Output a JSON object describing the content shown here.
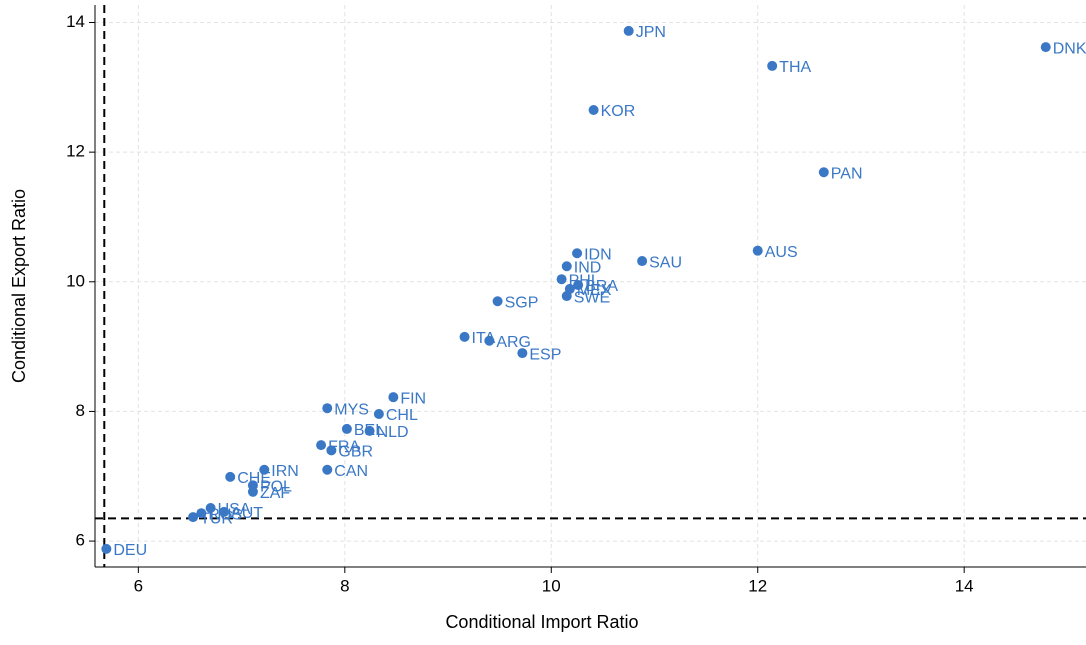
{
  "chart_data": {
    "type": "scatter",
    "xlabel": "Conditional Import Ratio",
    "ylabel": "Conditional Export Ratio",
    "labels": [
      "JPN",
      "DNK",
      "THA",
      "KOR",
      "PAN",
      "AUS",
      "IDN",
      "SAU",
      "IND",
      "PHL",
      "BRA",
      "MEX",
      "SWE",
      "SGP",
      "ITA",
      "ARG",
      "ESP",
      "FIN",
      "MYS",
      "CHL",
      "BEL",
      "NLD",
      "FRA",
      "GBR",
      "CAN",
      "IRN",
      "CHE",
      "POL",
      "ZAF",
      "USA",
      "AUT",
      "RUS",
      "TUR",
      "DEU"
    ],
    "x": [
      10.75,
      14.79,
      12.14,
      10.41,
      12.64,
      12.0,
      10.25,
      10.88,
      10.15,
      10.1,
      10.26,
      10.18,
      10.15,
      9.48,
      9.16,
      9.4,
      9.72,
      8.47,
      7.83,
      8.33,
      8.02,
      8.24,
      7.77,
      7.87,
      7.83,
      7.22,
      6.89,
      7.11,
      7.11,
      6.7,
      6.83,
      6.61,
      6.53,
      5.69
    ],
    "values": [
      13.87,
      13.62,
      13.33,
      12.65,
      11.69,
      10.48,
      10.44,
      10.32,
      10.24,
      10.04,
      9.95,
      9.89,
      9.78,
      9.7,
      9.15,
      9.09,
      8.9,
      8.22,
      8.05,
      7.96,
      7.73,
      7.7,
      7.48,
      7.4,
      7.1,
      7.1,
      6.99,
      6.86,
      6.76,
      6.51,
      6.45,
      6.43,
      6.37,
      5.88
    ],
    "color": "#3a78c6",
    "xlim": [
      5.58,
      15.18
    ],
    "ylim": [
      5.6,
      14.27
    ],
    "xticks": [
      6,
      8,
      10,
      12,
      14
    ],
    "yticks": [
      6,
      8,
      10,
      12,
      14
    ],
    "grid": true,
    "vlines": [
      5.67
    ],
    "hlines": [
      6.35
    ]
  }
}
